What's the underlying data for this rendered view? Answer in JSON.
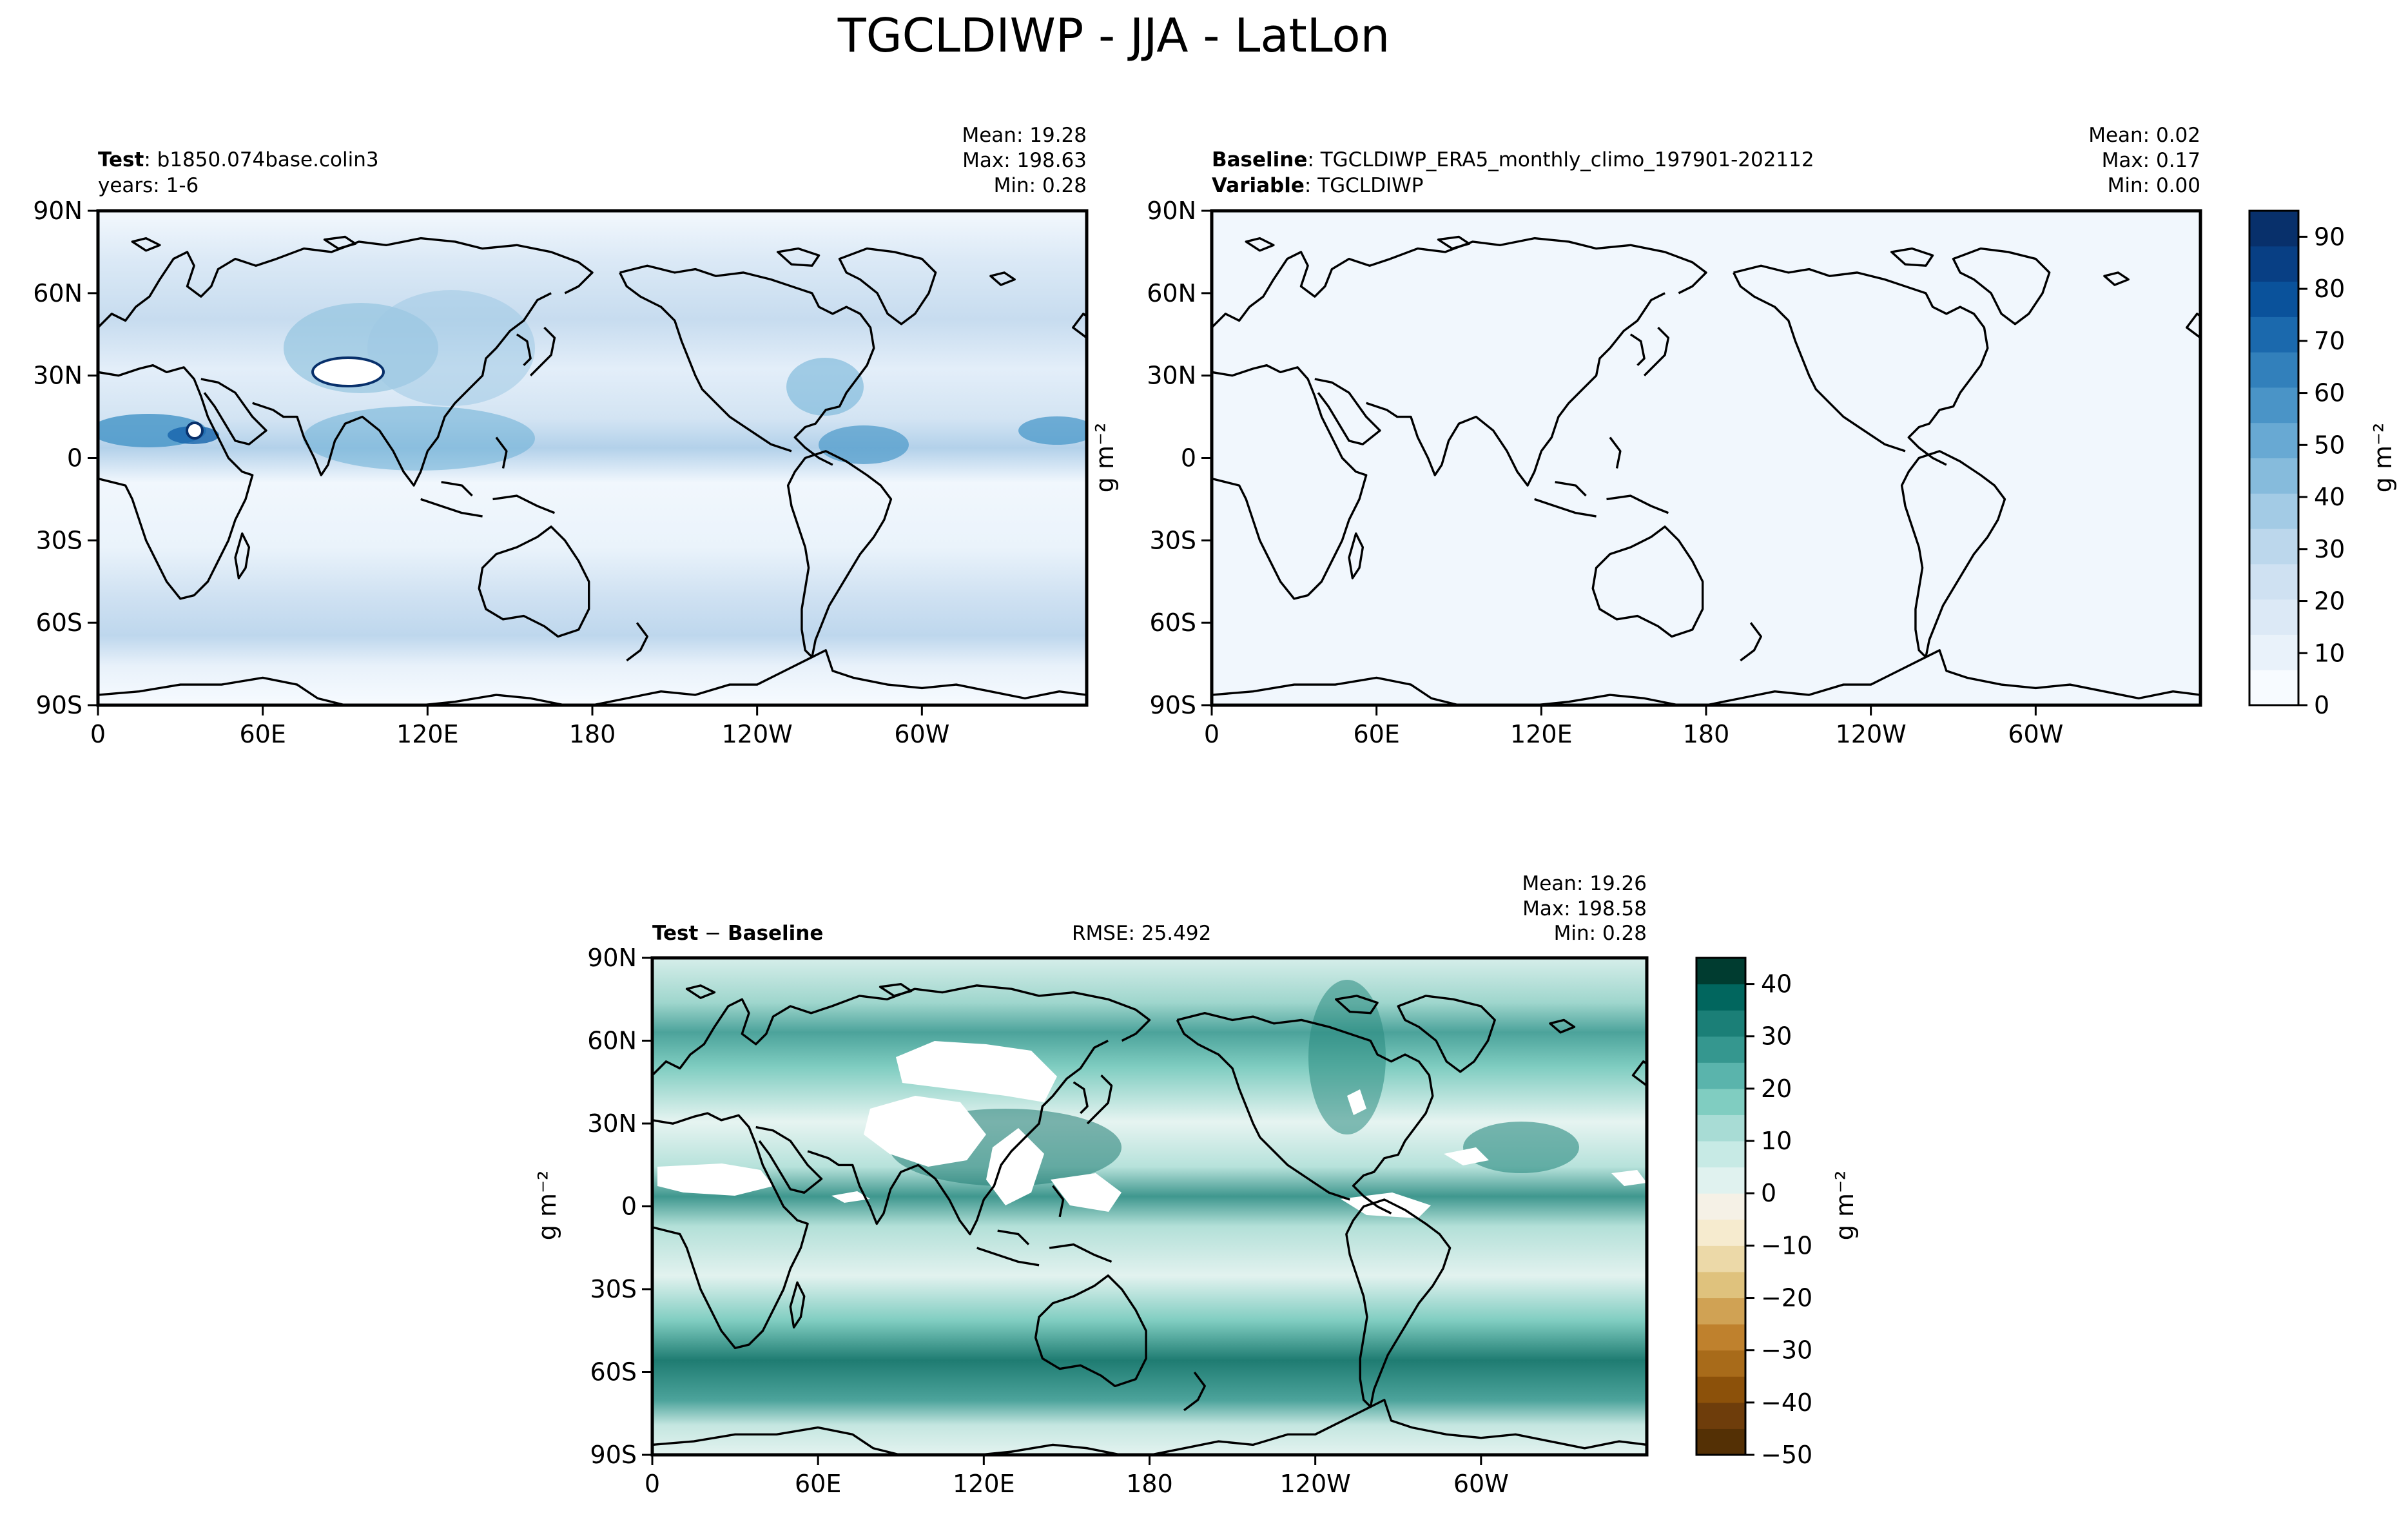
{
  "title": "TGCLDIWP - JJA - LatLon",
  "lon_ticks": [
    "0",
    "60E",
    "120E",
    "180",
    "120W",
    "60W"
  ],
  "lat_ticks": [
    "90N",
    "60N",
    "30N",
    "0",
    "30S",
    "60S",
    "90S"
  ],
  "colors": {
    "frame": "#000000",
    "blues": [
      "#f7fbff",
      "#e3eef9",
      "#d0e1f2",
      "#b7d4ea",
      "#94c4df",
      "#6aaed6",
      "#4a98c9",
      "#2e7ebc",
      "#1764ab",
      "#084a91",
      "#08306b"
    ],
    "diverging": [
      "#543005",
      "#7f4710",
      "#a86b1a",
      "#c99544",
      "#dfc27d",
      "#ecd9a8",
      "#f6ebcf",
      "#f5f5f5",
      "#d3ede9",
      "#a8dcd5",
      "#80cdc1",
      "#4ca39b",
      "#2a8a80",
      "#0f6c62",
      "#003c30"
    ]
  },
  "panels": {
    "test": {
      "label_bold": "Test",
      "label_text": "b1850.074base.colin3",
      "sub_text": "years: 1-6",
      "stats": [
        "Mean: 19.28",
        "Max: 198.63",
        "Min:  0.28"
      ]
    },
    "baseline": {
      "label_bold": "Baseline",
      "label_text": "TGCLDIWP_ERA5_monthly_climo_197901-202112",
      "sub_bold": "Variable",
      "sub_text": "TGCLDIWP",
      "stats": [
        "Mean:  0.02",
        "Max:  0.17",
        "Min:  0.00"
      ]
    },
    "diff": {
      "label_bold": "Test",
      "label_mid": " − ",
      "label_bold2": "Baseline",
      "rmse": "RMSE: 25.492",
      "stats": [
        "Mean: 19.26",
        "Max: 198.58",
        "Min:  0.28"
      ]
    }
  },
  "chart_data": [
    {
      "type": "heatmap",
      "name": "Test",
      "x_range": [
        0,
        360
      ],
      "y_range": [
        -90,
        90
      ],
      "color_range": [
        0,
        95
      ],
      "colorbar_ticks": [
        "0",
        "10",
        "20",
        "30",
        "40",
        "50",
        "60",
        "70",
        "80",
        "90"
      ],
      "colorbar_unit": "g m⁻²"
    },
    {
      "type": "heatmap",
      "name": "Baseline",
      "x_range": [
        0,
        360
      ],
      "y_range": [
        -90,
        90
      ],
      "color_range": [
        0,
        95
      ],
      "colorbar_ticks": [
        "0",
        "10",
        "20",
        "30",
        "40",
        "50",
        "60",
        "70",
        "80",
        "90"
      ],
      "colorbar_unit": "g m⁻²"
    },
    {
      "type": "heatmap",
      "name": "Test − Baseline",
      "x_range": [
        0,
        360
      ],
      "y_range": [
        -90,
        90
      ],
      "color_range": [
        -50,
        45
      ],
      "colorbar_ticks": [
        "40",
        "30",
        "20",
        "10",
        "0",
        "−10",
        "−20",
        "−30",
        "−40",
        "−50"
      ],
      "colorbar_unit": "g m⁻²"
    }
  ]
}
